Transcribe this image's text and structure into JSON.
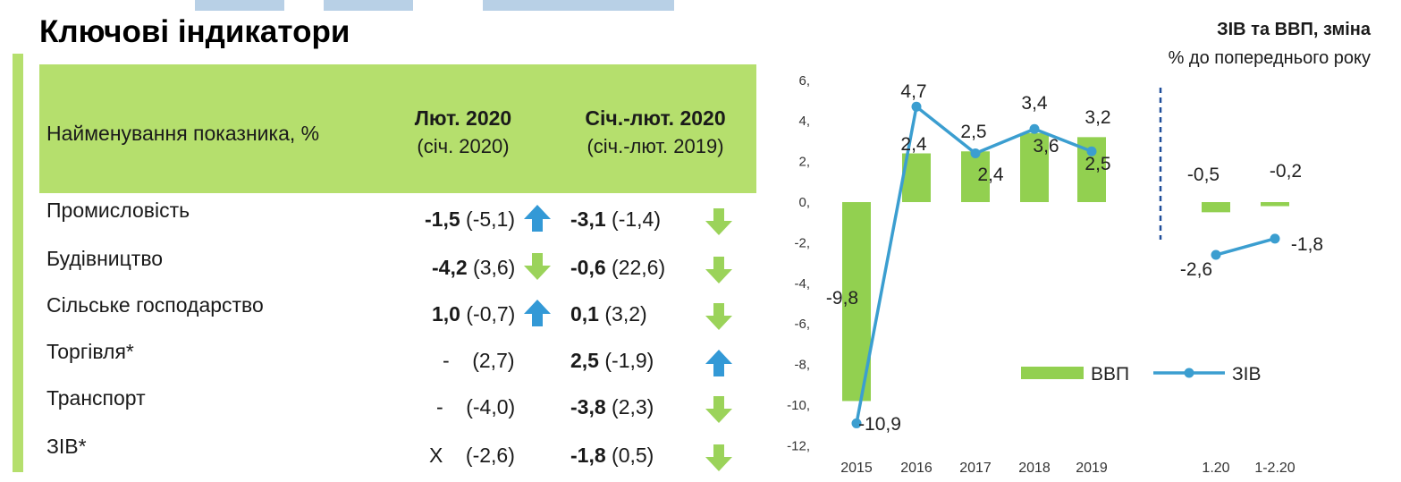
{
  "page": {
    "title": "Ключові індикатори"
  },
  "colors": {
    "green": "#b5df6d",
    "bar_green": "#92d050",
    "blue": "#3b9ed0",
    "up_arrow": "#3399d6",
    "down_arrow": "#9bd35a",
    "dash": "#1f4e9a"
  },
  "table": {
    "header": {
      "name": "Найменування показника, %",
      "col1_title": "Лют. 2020",
      "col1_sub": "(січ. 2020)",
      "col2_title": "Січ.-лют. 2020",
      "col2_sub": "(січ.-лют. 2019)"
    },
    "rows": [
      {
        "name": "Промисловість",
        "c1_value": "-1,5",
        "c1_prev": "(-5,1)",
        "c1_arrow": "up-arrow-icon",
        "c2_value": "-3,1",
        "c2_prev": "(-1,4)",
        "c2_arrow": "down-arrow-icon"
      },
      {
        "name": "Будівництво",
        "c1_value": "-4,2",
        "c1_prev": "(3,6)",
        "c1_arrow": "down-arrow-icon",
        "c2_value": "-0,6",
        "c2_prev": "(22,6)",
        "c2_arrow": "down-arrow-icon"
      },
      {
        "name": "Сільське господарство",
        "c1_value": "1,0",
        "c1_prev": "(-0,7)",
        "c1_arrow": "up-arrow-icon",
        "c2_value": "0,1",
        "c2_prev": "(3,2)",
        "c2_arrow": "down-arrow-icon"
      },
      {
        "name": "Торгівля*",
        "c1_value": "-",
        "c1_prev": "(2,7)",
        "c1_arrow": "",
        "c2_value": "2,5",
        "c2_prev": "(-1,9)",
        "c2_arrow": "up-arrow-icon"
      },
      {
        "name": "Транспорт",
        "c1_value": "-",
        "c1_prev": "(-4,0)",
        "c1_arrow": "",
        "c2_value": "-3,8",
        "c2_prev": "(2,3)",
        "c2_arrow": "down-arrow-icon"
      },
      {
        "name": "ЗІВ*",
        "c1_value": "X",
        "c1_prev": "(-2,6)",
        "c1_arrow": "",
        "c2_value": "-1,8",
        "c2_prev": "(0,5)",
        "c2_arrow": "down-arrow-icon"
      }
    ]
  },
  "chart_data": {
    "type": "bar",
    "title": "ЗІВ та ВВП, зміна",
    "subtitle": "% до попереднього року",
    "categories": [
      "2015",
      "2016",
      "2017",
      "2018",
      "2019",
      "1.20",
      "1-2.20"
    ],
    "series": [
      {
        "name": "ВВП",
        "kind": "bar",
        "values": [
          -9.8,
          2.4,
          2.5,
          3.4,
          3.2,
          -0.5,
          -0.2
        ],
        "labels": [
          "-9,8",
          "2,4",
          "2,5",
          "3,4",
          "3,2",
          "-0,5",
          "-0,2"
        ]
      },
      {
        "name": "ЗІВ",
        "kind": "line",
        "values": [
          -10.9,
          4.7,
          2.4,
          3.6,
          2.5,
          -2.6,
          -1.8
        ],
        "labels": [
          "-10,9",
          "4,7",
          "2,4",
          "3,6",
          "2,5",
          "-2,6",
          "-1,8"
        ]
      }
    ],
    "y_ticks": [
      "6,",
      "4,",
      "2,",
      "0,",
      "-2,",
      "-4,",
      "-6,",
      "-8,",
      "-10,",
      "-12,"
    ],
    "ylim": [
      -12,
      6
    ],
    "legend": "bottom-right",
    "grid": false
  }
}
